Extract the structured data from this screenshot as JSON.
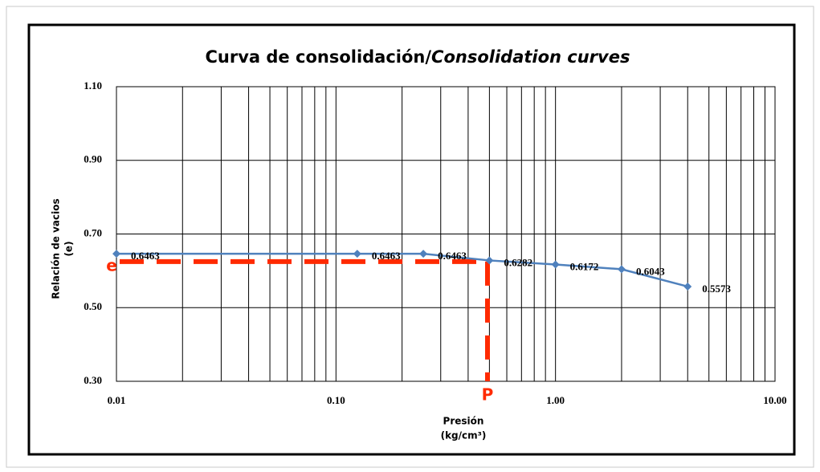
{
  "chart_data": {
    "type": "line",
    "title": [
      "Curva de consolidación/",
      "Consolidation curves"
    ],
    "x_label": [
      "Presión",
      "(kg/cm³)"
    ],
    "y_label": [
      "Relación de vacios",
      "(e)"
    ],
    "x": [
      0.01,
      0.125,
      0.25,
      0.5,
      1,
      2,
      4
    ],
    "series": [
      {
        "name": "e",
        "color": "#4f81bd",
        "values": [
          0.6463,
          0.6463,
          0.6463,
          0.6282,
          0.6172,
          0.6043,
          0.5573
        ]
      }
    ],
    "xscale": "log",
    "xlim": [
      0.01,
      10
    ],
    "xticks": [
      0.01,
      {
        "value": 0.1,
        "label": "0.10"
      },
      {
        "value": 1,
        "label": "1.00"
      },
      {
        "value": 10,
        "label": "10.00"
      }
    ],
    "xminor": [
      0.02,
      0.03,
      0.04,
      0.05,
      0.06,
      0.07,
      0.08,
      0.09,
      0.2,
      0.3,
      0.4,
      0.5,
      0.6,
      0.7,
      0.8,
      0.9,
      2,
      3,
      4,
      5,
      6,
      7,
      8,
      9
    ],
    "ylim": [
      0.3,
      1.1
    ],
    "yticks": [
      {
        "value": 0.3,
        "label": "0.30"
      },
      {
        "value": 0.5,
        "label": "0.50"
      },
      {
        "value": 0.7,
        "label": "0.70"
      },
      {
        "value": 0.9,
        "label": "0.90"
      },
      {
        "value": 1.1,
        "label": "1.10"
      }
    ],
    "grid": true,
    "annotations": [
      {
        "text": "e",
        "y": 0.625,
        "color": "#ff2a00"
      },
      {
        "text": "P",
        "x": 0.49,
        "color": "#ff2a00"
      }
    ]
  }
}
